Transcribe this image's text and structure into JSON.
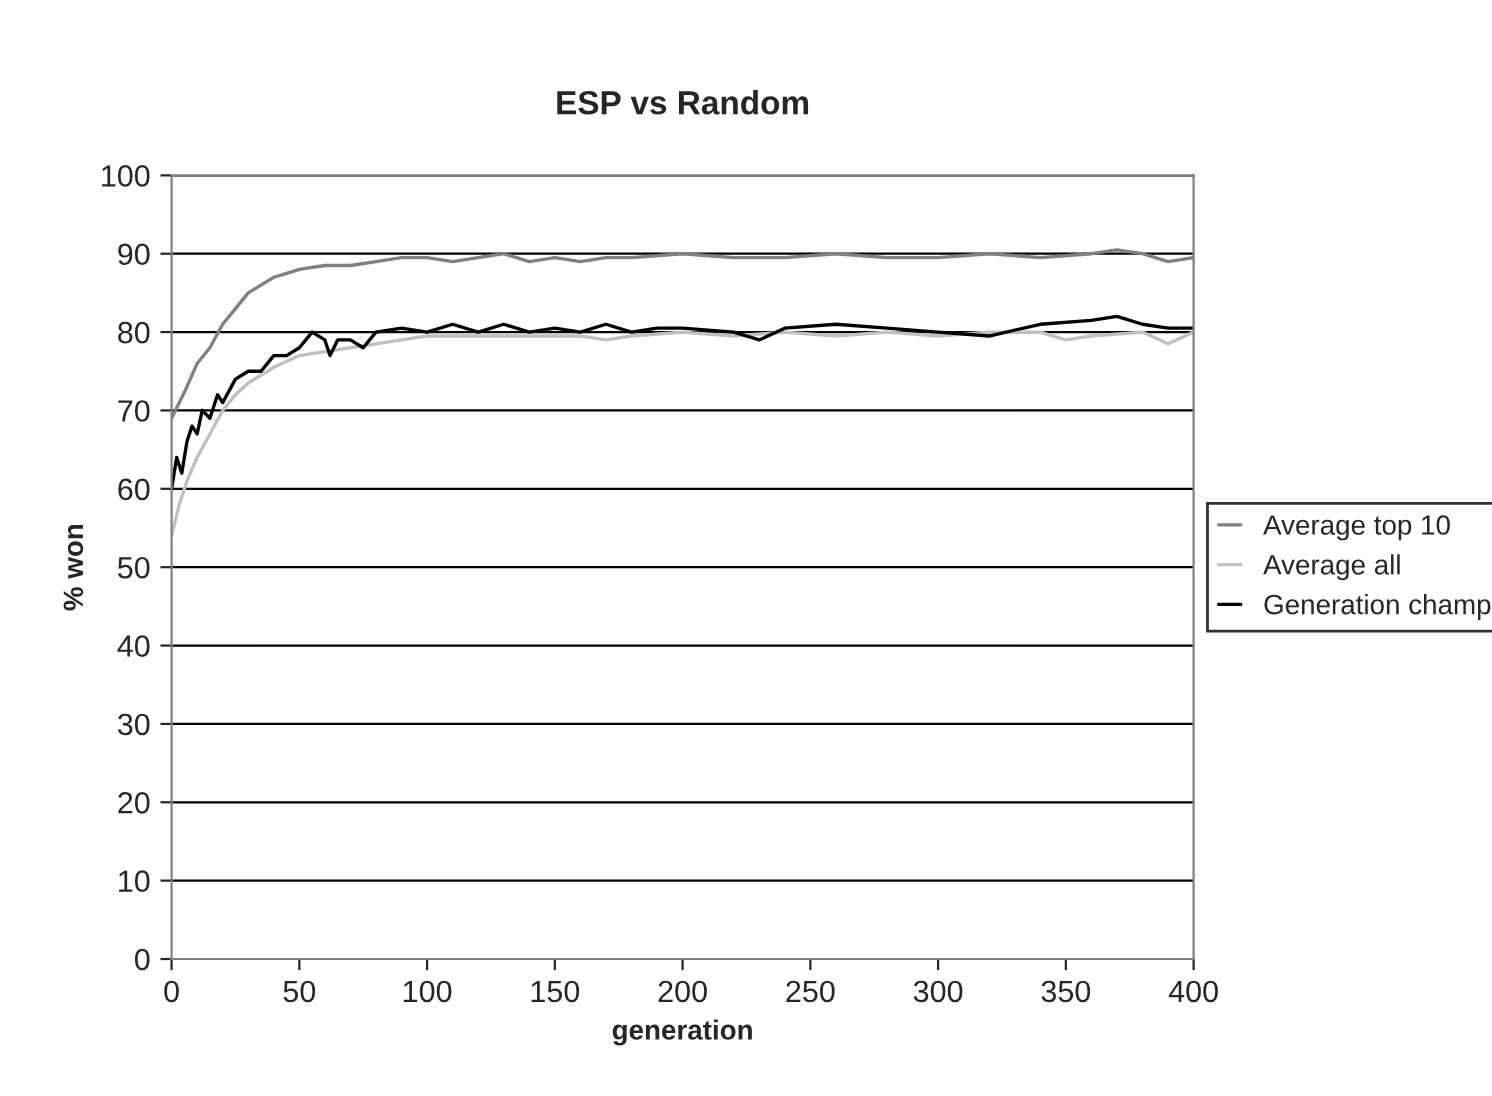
{
  "chart_data": {
    "type": "line",
    "title": "ESP vs Random",
    "xlabel": "generation",
    "ylabel": "% won",
    "xlim": [
      0,
      400
    ],
    "xticks": [
      0,
      50,
      100,
      150,
      200,
      250,
      300,
      350,
      400
    ],
    "ylim": [
      0,
      100
    ],
    "yticks": [
      0,
      10,
      20,
      30,
      40,
      50,
      60,
      70,
      80,
      90,
      100
    ],
    "grid": "y",
    "legend": "right",
    "marker": "none",
    "line_style": "solid",
    "series": [
      {
        "name": "Average top 10",
        "color": "#808080",
        "x": [
          0,
          3,
          6,
          10,
          15,
          20,
          25,
          30,
          35,
          40,
          45,
          50,
          60,
          70,
          80,
          90,
          100,
          110,
          120,
          130,
          140,
          150,
          160,
          170,
          180,
          200,
          220,
          240,
          260,
          280,
          300,
          320,
          340,
          360,
          370,
          380,
          390,
          400
        ],
        "values": [
          69,
          71,
          73,
          76,
          78,
          81,
          83,
          85,
          86,
          87,
          87.5,
          88,
          88.5,
          88.5,
          89,
          89.5,
          89.5,
          89,
          89.5,
          90,
          89,
          89.5,
          89,
          89.5,
          89.5,
          90,
          89.5,
          89.5,
          90,
          89.5,
          89.5,
          90,
          89.5,
          90,
          90.5,
          90,
          89,
          89.5
        ]
      },
      {
        "name": "Average all",
        "color": "#c0c0c0",
        "x": [
          0,
          3,
          6,
          10,
          15,
          20,
          25,
          30,
          40,
          50,
          60,
          70,
          80,
          90,
          100,
          120,
          140,
          160,
          170,
          180,
          200,
          220,
          240,
          260,
          280,
          300,
          320,
          340,
          350,
          360,
          380,
          390,
          400
        ],
        "values": [
          54,
          58,
          61,
          64,
          67,
          70,
          72,
          73.5,
          75.5,
          77,
          77.5,
          78,
          78.5,
          79,
          79.5,
          79.5,
          79.5,
          79.5,
          79,
          79.5,
          80,
          79.5,
          80,
          79.5,
          80,
          79.5,
          80,
          80,
          79,
          79.5,
          80,
          78.5,
          80
        ]
      },
      {
        "name": "Generation champ",
        "color": "#000000",
        "x": [
          0,
          2,
          4,
          6,
          8,
          10,
          12,
          15,
          18,
          20,
          25,
          30,
          35,
          40,
          45,
          50,
          55,
          60,
          62,
          65,
          70,
          75,
          80,
          90,
          100,
          110,
          120,
          130,
          140,
          150,
          160,
          170,
          180,
          190,
          200,
          220,
          230,
          240,
          260,
          280,
          300,
          320,
          340,
          360,
          370,
          380,
          390,
          400
        ],
        "values": [
          60,
          64,
          62,
          66,
          68,
          67,
          70,
          69,
          72,
          71,
          74,
          75,
          75,
          77,
          77,
          78,
          80,
          79,
          77,
          79,
          79,
          78,
          80,
          80.5,
          80,
          81,
          80,
          81,
          80,
          80.5,
          80,
          81,
          80,
          80.5,
          80.5,
          80,
          79,
          80.5,
          81,
          80.5,
          80,
          79.5,
          81,
          81.5,
          82,
          81,
          80.5,
          80.5
        ]
      }
    ]
  }
}
